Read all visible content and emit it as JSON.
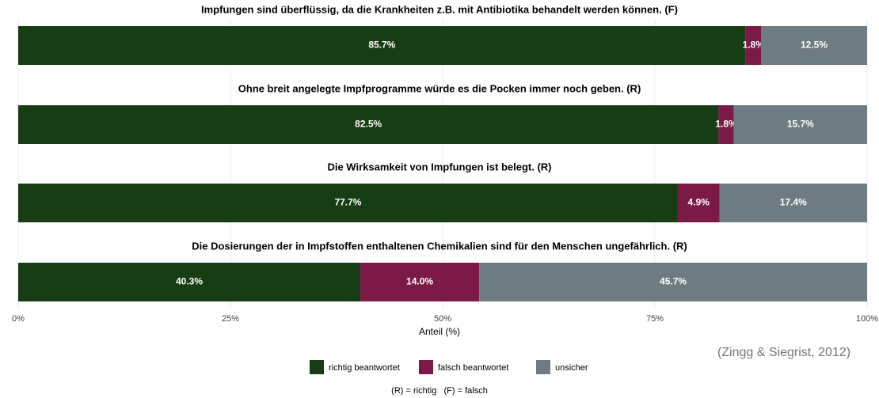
{
  "chart_data": {
    "type": "stacked-bar-horizontal",
    "categories": [
      "Impfungen sind überflüssig, da die Krankheiten z.B. mit Antibiotika behandelt werden können. (F)",
      "Ohne breit angelegte Impfprogramme würde es die Pocken immer noch geben. (R)",
      "Die Wirksamkeit von Impfungen ist belegt. (R)",
      "Die Dosierungen der in Impfstoffen enthaltenen Chemikalien sind für den Menschen ungefährlich. (R)"
    ],
    "series": [
      {
        "name": "richtig beantwortet",
        "color": "#173d14",
        "values": [
          85.7,
          82.5,
          77.7,
          40.3
        ],
        "value_labels": [
          "85.7%",
          "82.5%",
          "77.7%",
          "40.3%"
        ]
      },
      {
        "name": "falsch beantwortet",
        "color": "#7b1a47",
        "values": [
          1.8,
          1.8,
          4.9,
          14.0
        ],
        "value_labels": [
          "1.8%",
          "1.8%",
          "4.9%",
          "14.0%"
        ]
      },
      {
        "name": "unsicher",
        "color": "#6e7b82",
        "values": [
          12.5,
          15.7,
          17.4,
          45.7
        ],
        "value_labels": [
          "12.5%",
          "15.7%",
          "17.4%",
          "45.7%"
        ]
      }
    ],
    "xlabel": "Anteil (%)",
    "xlim": [
      0,
      100
    ],
    "xticks": [
      {
        "value": 0,
        "label": "0%"
      },
      {
        "value": 25,
        "label": "25%"
      },
      {
        "value": 50,
        "label": "50%"
      },
      {
        "value": 75,
        "label": "75%"
      },
      {
        "value": 100,
        "label": "100%"
      }
    ],
    "grid": true,
    "legend": "bottom",
    "note": "(R) = richtig   (F) = falsch",
    "source": "(Zingg & Siegrist, 2012)"
  }
}
